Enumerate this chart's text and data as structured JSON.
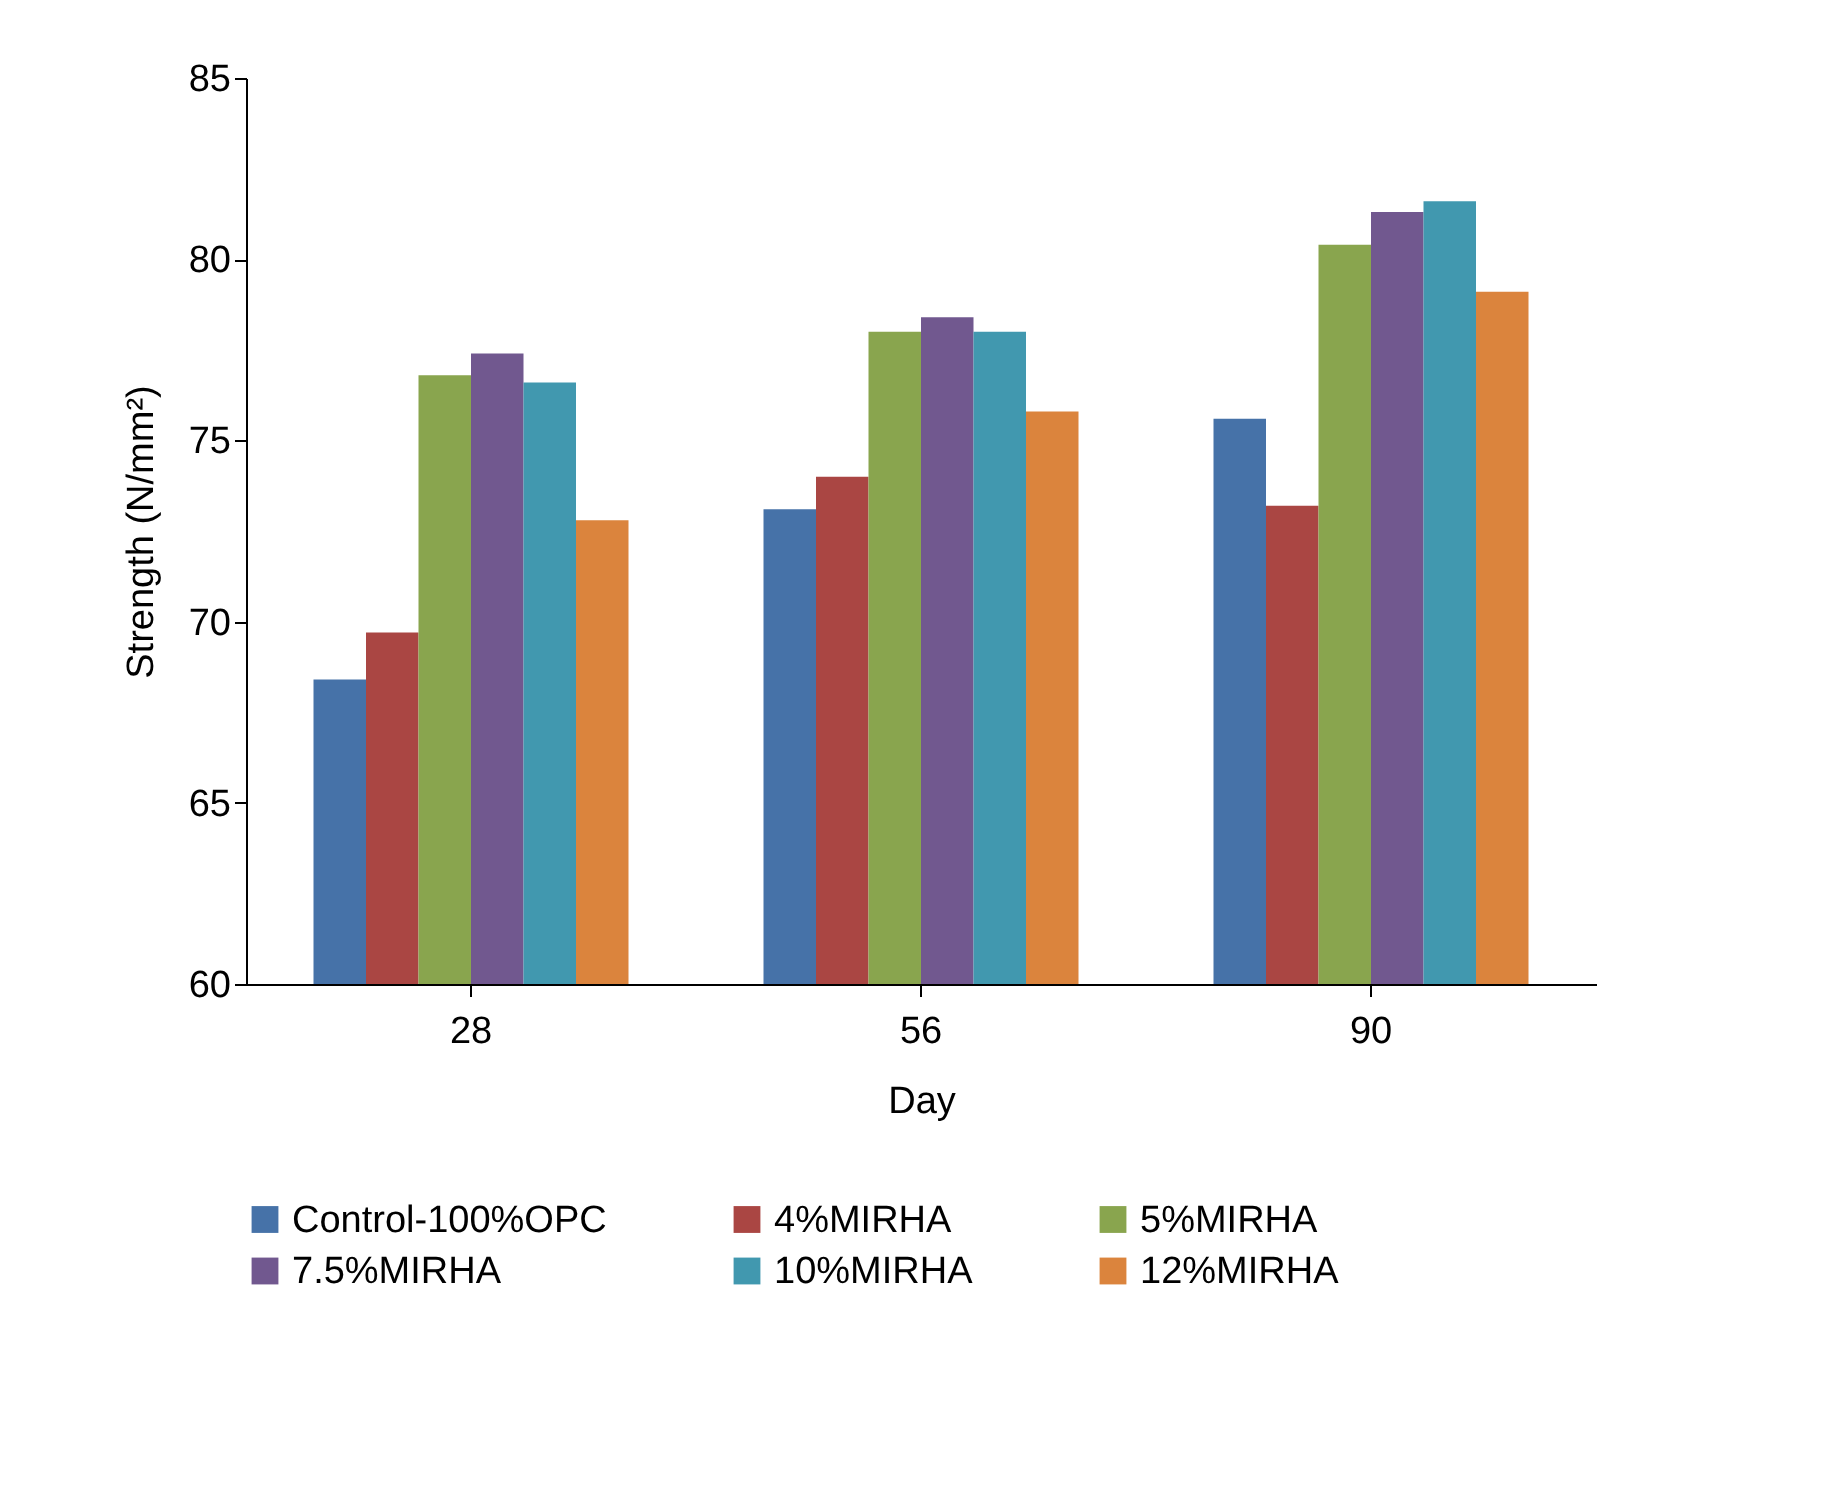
{
  "chart_data": {
    "type": "bar",
    "xlabel": "Day",
    "ylabel": "Strength    (N/mm²)",
    "categories": [
      "28",
      "56",
      "90"
    ],
    "series": [
      {
        "name": "Control-100%OPC",
        "color": "#4672a8",
        "values": [
          68.4,
          73.1,
          75.6
        ]
      },
      {
        "name": "4%MIRHA",
        "color": "#aa4643",
        "values": [
          69.7,
          74.0,
          73.2
        ]
      },
      {
        "name": "5%MIRHA",
        "color": "#89a54e",
        "values": [
          76.8,
          78.0,
          80.4
        ]
      },
      {
        "name": "7.5%MIRHA",
        "color": "#71588f",
        "values": [
          77.4,
          78.4,
          81.3
        ]
      },
      {
        "name": "10%MIRHA",
        "color": "#4198af",
        "values": [
          76.6,
          78.0,
          81.6
        ]
      },
      {
        "name": "12%MIRHA",
        "color": "#db843d",
        "values": [
          72.8,
          75.8,
          79.1
        ]
      }
    ],
    "ylim": [
      60,
      85
    ],
    "yticks": [
      60,
      65,
      70,
      75,
      80,
      85
    ],
    "grid": false,
    "legend": "bottom"
  }
}
